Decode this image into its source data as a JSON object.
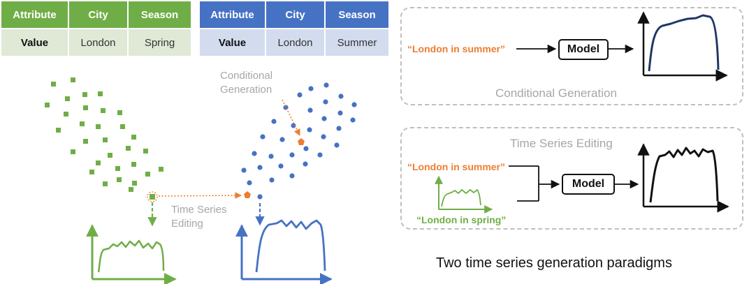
{
  "table_green": {
    "headers": [
      "Attribute",
      "City",
      "Season"
    ],
    "row": [
      "Value",
      "London",
      "Spring"
    ]
  },
  "table_blue": {
    "headers": [
      "Attribute",
      "City",
      "Season"
    ],
    "row": [
      "Value",
      "London",
      "Summer"
    ]
  },
  "labels": {
    "conditional_generation": [
      "Conditional",
      "Generation"
    ],
    "time_series_editing": [
      "Time Series",
      "Editing"
    ]
  },
  "panel_conditional": {
    "input_text": "“London in summer”",
    "model_label": "Model",
    "title": "Conditional Generation"
  },
  "panel_editing": {
    "title": "Time Series Editing",
    "input_text": "“London in summer”",
    "series_text": "“London in spring”",
    "model_label": "Model"
  },
  "caption": "Two time series generation paradigms",
  "colors": {
    "green": "#6fae47",
    "blue": "#4672c4",
    "orange": "#ed7d31",
    "navy": "#1f3864",
    "grey": "#a6a6a6"
  }
}
